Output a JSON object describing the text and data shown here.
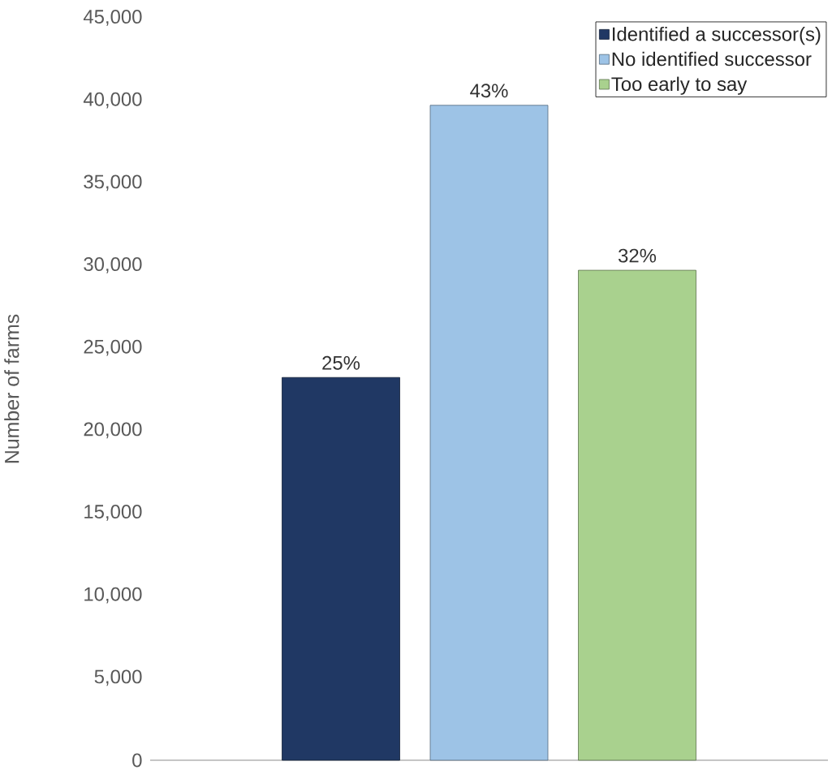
{
  "chart_data": {
    "type": "bar",
    "ylabel": "Number of farms",
    "categories": [
      null
    ],
    "series": [
      {
        "name": "Identified a successor(s)",
        "color": "#203864",
        "values": [
          23200
        ]
      },
      {
        "name": "No identified successor",
        "color": "#9dc3e6",
        "values": [
          39700
        ]
      },
      {
        "name": "Too early to say",
        "color": "#a9d18e",
        "values": [
          29700
        ]
      }
    ],
    "annotations": [
      {
        "text": "25%",
        "y": 23200
      },
      {
        "text": "43%",
        "y": 39700
      },
      {
        "text": "32%",
        "y": 29700
      }
    ],
    "ylim": [
      0,
      45000
    ],
    "yticks": [
      0,
      {
        "value": 5000,
        "label": "5,000"
      },
      {
        "value": 10000,
        "label": "10,000"
      },
      {
        "value": 15000,
        "label": "15,000"
      },
      {
        "value": 20000,
        "label": "20,000"
      },
      {
        "value": 25000,
        "label": "25,000"
      },
      {
        "value": 30000,
        "label": "30,000"
      },
      {
        "value": 35000,
        "label": "35,000"
      },
      {
        "value": 40000,
        "label": "40,000"
      },
      {
        "value": 45000,
        "label": "45,000"
      }
    ],
    "legend": "top right",
    "grid": false
  }
}
